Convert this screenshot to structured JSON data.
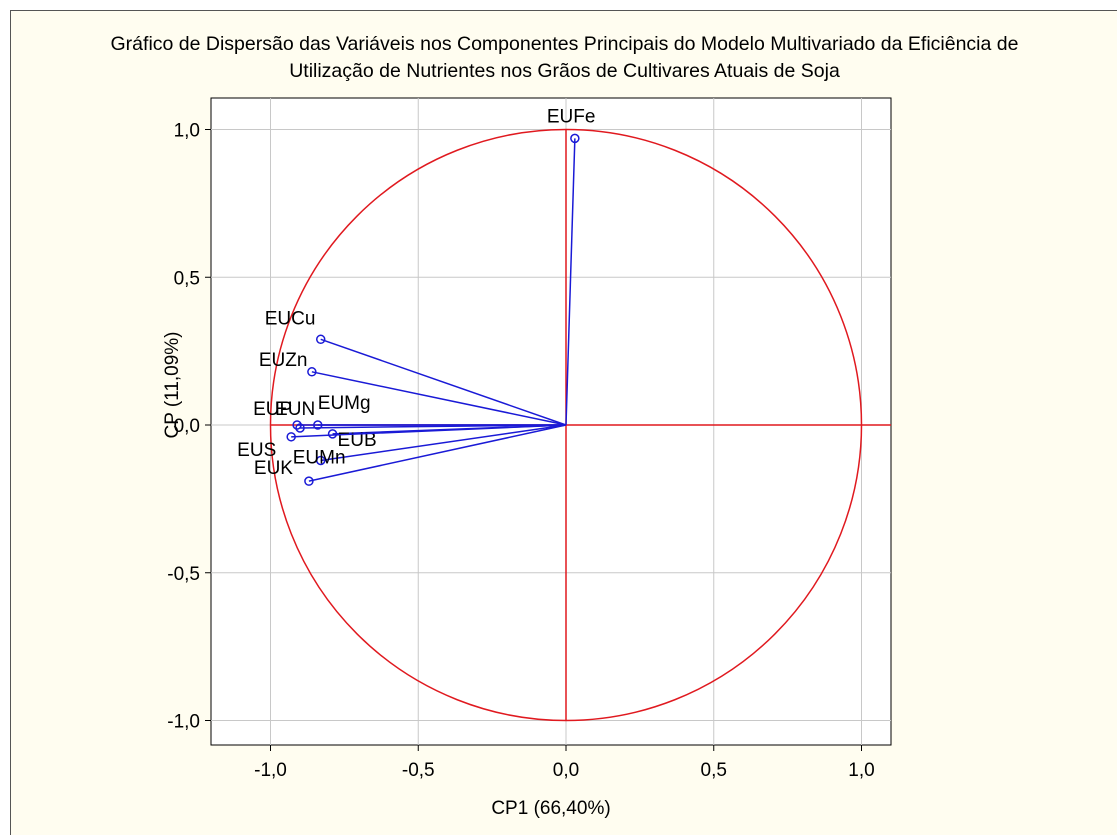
{
  "chart_data": {
    "type": "scatter",
    "title_line_1": "Gráfico de Dispersão das Variáveis nos Componentes Principais do Modelo Multivariado da Eficiência de",
    "title_line_2": "Utilização de Nutrientes nos Grãos de Cultivares Atuais de Soja",
    "xlabel": "CP1 (66,40%)",
    "ylabel": "CP  (11,09%)",
    "xlim": [
      -1.1,
      1.1
    ],
    "ylim": [
      -1.1,
      1.1
    ],
    "x_ticks": [
      {
        "value": -1.0,
        "label": "-1,0"
      },
      {
        "value": -0.5,
        "label": "-0,5"
      },
      {
        "value": 0.0,
        "label": "0,0"
      },
      {
        "value": 0.5,
        "label": "0,5"
      },
      {
        "value": 1.0,
        "label": "1,0"
      }
    ],
    "y_ticks": [
      {
        "value": 1.0,
        "label": "1,0"
      },
      {
        "value": 0.5,
        "label": "0,5"
      },
      {
        "value": 0.0,
        "label": "0,0"
      },
      {
        "value": -0.5,
        "label": "-0,5"
      },
      {
        "value": -1.0,
        "label": "-1,0"
      }
    ],
    "grid": true,
    "unit_circle": true,
    "points": [
      {
        "name": "EUFe",
        "x": 0.03,
        "y": 0.97
      },
      {
        "name": "EUCu",
        "x": -0.83,
        "y": 0.29
      },
      {
        "name": "EUZn",
        "x": -0.86,
        "y": 0.18
      },
      {
        "name": "EUP",
        "x": -0.91,
        "y": 0.0
      },
      {
        "name": "EUN",
        "x": -0.9,
        "y": -0.01
      },
      {
        "name": "EUMg",
        "x": -0.84,
        "y": 0.0
      },
      {
        "name": "EUB",
        "x": -0.79,
        "y": -0.03
      },
      {
        "name": "EUS",
        "x": -0.93,
        "y": -0.04
      },
      {
        "name": "EUMn",
        "x": -0.83,
        "y": -0.12
      },
      {
        "name": "EUK",
        "x": -0.87,
        "y": -0.19
      }
    ],
    "colors": {
      "circle_and_axes": "#e0191f",
      "vectors": "#1a1ad6",
      "grid": "#c8c8c8",
      "background": "#fffdf0",
      "plot_area": "#ffffff"
    }
  }
}
